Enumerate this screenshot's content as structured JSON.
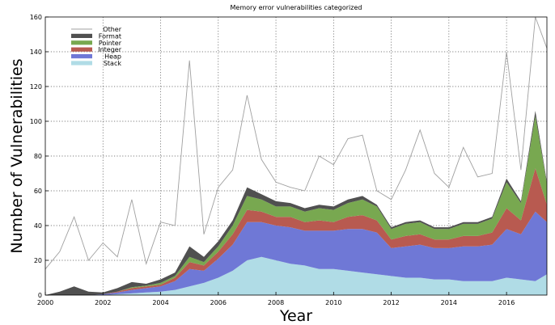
{
  "chart_data": {
    "type": "area",
    "title": "Memory error vulnerabilities categorized",
    "xlabel": "Year",
    "ylabel": "Number of Vulnerabilities",
    "xlim": [
      2000,
      2017.4
    ],
    "ylim": [
      0,
      160
    ],
    "x_ticks": [
      "2000",
      "2002",
      "2004",
      "2006",
      "2008",
      "2010",
      "2012",
      "2014",
      "2016"
    ],
    "y_ticks": [
      "0",
      "20",
      "40",
      "60",
      "80",
      "100",
      "120",
      "140",
      "160"
    ],
    "grid": true,
    "legend_position": "top-left",
    "x": [
      2000.0,
      2000.5,
      2001.0,
      2001.5,
      2002.0,
      2002.5,
      2003.0,
      2003.5,
      2004.0,
      2004.5,
      2005.0,
      2005.5,
      2006.0,
      2006.5,
      2007.0,
      2007.5,
      2008.0,
      2008.5,
      2009.0,
      2009.5,
      2010.0,
      2010.5,
      2011.0,
      2011.5,
      2012.0,
      2012.5,
      2013.0,
      2013.5,
      2014.0,
      2014.5,
      2015.0,
      2015.5,
      2016.0,
      2016.5,
      2017.0,
      2017.4
    ],
    "series": [
      {
        "name": "Stack",
        "color": "#b0dce6",
        "values": [
          0,
          0,
          0,
          0,
          0,
          0.5,
          1,
          1.5,
          2,
          3,
          5,
          7,
          10,
          14,
          20,
          22,
          20,
          18,
          17,
          15,
          15,
          14,
          13,
          12,
          11,
          10,
          10,
          9,
          9,
          8,
          8,
          8,
          10,
          9,
          8,
          12
        ]
      },
      {
        "name": "Heap",
        "color": "#6f78d6",
        "values": [
          0,
          0,
          0,
          0,
          0.5,
          1,
          2,
          2.5,
          3,
          5,
          10,
          7,
          11,
          15,
          22,
          20,
          20,
          21,
          20,
          22,
          22,
          24,
          25,
          24,
          16,
          18,
          19,
          18,
          18,
          20,
          20,
          21,
          28,
          26,
          40,
          30
        ]
      },
      {
        "name": "Integer",
        "color": "#b85a50",
        "values": [
          0,
          0,
          0,
          0,
          0,
          0.5,
          1,
          1,
          1,
          2,
          4,
          3,
          4,
          6,
          7,
          6,
          5,
          6,
          5,
          6,
          5,
          7,
          8,
          7,
          5,
          6,
          6,
          5,
          5,
          6,
          6,
          7,
          12,
          8,
          25,
          10
        ]
      },
      {
        "name": "Pointer",
        "color": "#78a850",
        "values": [
          0,
          0,
          0,
          0,
          0,
          0,
          0.5,
          0.5,
          1,
          1,
          3,
          2,
          3,
          5,
          8,
          7,
          6,
          6,
          6,
          7,
          7,
          8,
          9,
          8,
          6,
          7,
          7,
          6,
          6,
          7,
          7,
          8,
          15,
          10,
          30,
          12
        ]
      },
      {
        "name": "Format",
        "color": "#505050",
        "values": [
          0,
          2,
          5,
          2,
          1,
          2,
          3,
          1,
          2,
          2,
          6,
          3,
          3,
          3,
          5,
          3,
          3,
          2,
          2,
          2,
          2,
          2,
          2,
          1,
          1,
          1,
          1,
          1,
          1,
          1,
          1,
          1,
          2,
          1,
          3,
          1
        ]
      },
      {
        "name": "Other",
        "color": "#a0a0a0",
        "type": "line",
        "values": [
          15,
          25,
          45,
          20,
          30,
          22,
          55,
          18,
          42,
          40,
          135,
          35,
          62,
          72,
          115,
          78,
          65,
          62,
          60,
          80,
          75,
          90,
          92,
          60,
          55,
          72,
          95,
          70,
          62,
          85,
          68,
          70,
          140,
          72,
          160,
          142
        ]
      }
    ]
  }
}
